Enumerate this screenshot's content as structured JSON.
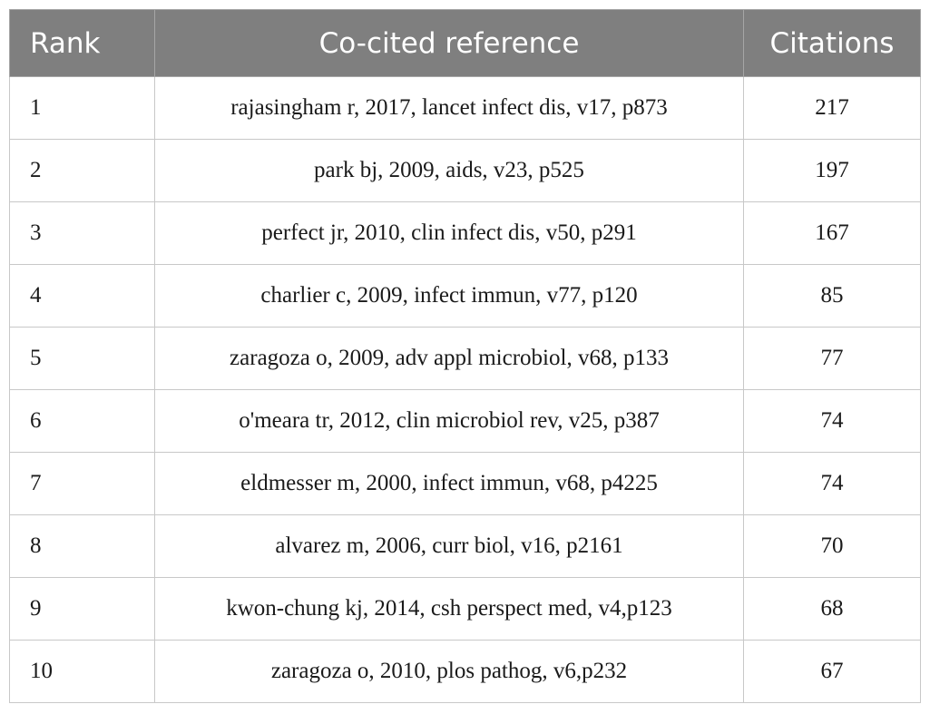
{
  "table": {
    "headers": {
      "rank": "Rank",
      "reference": "Co-cited reference",
      "citations": "Citations"
    },
    "rows": [
      {
        "rank": "1",
        "reference": "rajasingham r, 2017, lancet infect dis, v17, p873",
        "citations": "217"
      },
      {
        "rank": "2",
        "reference": "park bj, 2009, aids, v23, p525",
        "citations": "197"
      },
      {
        "rank": "3",
        "reference": "perfect jr, 2010, clin infect dis, v50, p291",
        "citations": "167"
      },
      {
        "rank": "4",
        "reference": "charlier c, 2009, infect immun, v77, p120",
        "citations": "85"
      },
      {
        "rank": "5",
        "reference": "zaragoza o, 2009, adv appl microbiol, v68, p133",
        "citations": "77"
      },
      {
        "rank": "6",
        "reference": "o'meara tr, 2012, clin microbiol rev, v25, p387",
        "citations": "74"
      },
      {
        "rank": "7",
        "reference": "eldmesser m, 2000, infect immun, v68, p4225",
        "citations": "74"
      },
      {
        "rank": "8",
        "reference": "alvarez m, 2006, curr biol, v16, p2161",
        "citations": "70"
      },
      {
        "rank": "9",
        "reference": "kwon-chung kj, 2014, csh perspect med, v4,p123",
        "citations": "68"
      },
      {
        "rank": "10",
        "reference": "zaragoza o, 2010, plos pathog, v6,p232",
        "citations": "67"
      }
    ]
  }
}
